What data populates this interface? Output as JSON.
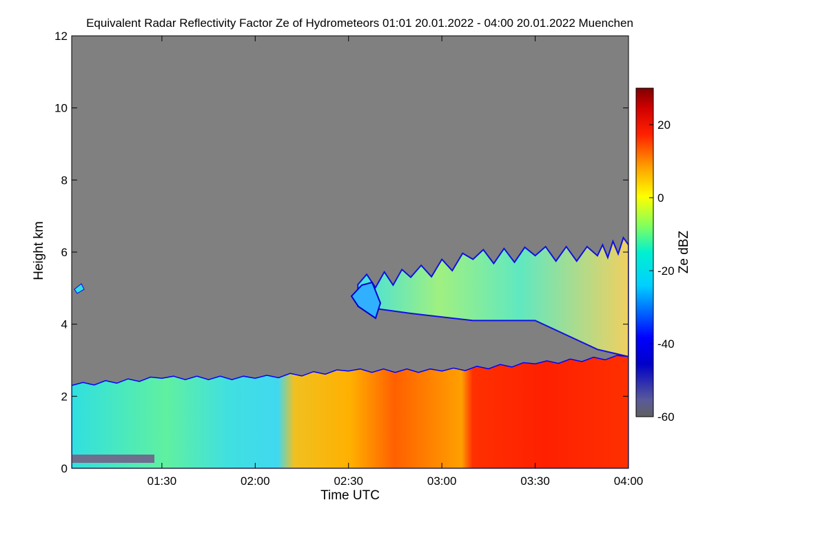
{
  "chart_data": {
    "type": "heatmap",
    "title": "Equivalent Radar Reflectivity Factor Ze of Hydrometeors   01:01 20.01.2022 - 04:00 20.01.2022 Muenchen",
    "xlabel": "Time UTC",
    "ylabel": "Height km",
    "colorbar_label": "Ze dBZ",
    "x_time_range": [
      "01:01",
      "04:00"
    ],
    "x_ticks": [
      "01:30",
      "02:00",
      "02:30",
      "03:00",
      "03:30",
      "04:00"
    ],
    "ylim": [
      0,
      12
    ],
    "y_ticks": [
      "0",
      "2",
      "4",
      "6",
      "8",
      "10",
      "12"
    ],
    "colorbar_range": [
      -60,
      30
    ],
    "colorbar_ticks": [
      "20",
      "0",
      "-20",
      "-40",
      "-60"
    ],
    "no_signal_color": "#808080",
    "colormap": [
      "#0000c8",
      "#0000ff",
      "#00c8ff",
      "#00ffff",
      "#80ff80",
      "#ffff00",
      "#ffa500",
      "#ff0000",
      "#800000"
    ],
    "features": {
      "lower_layer_top_km": [
        {
          "time": "01:01",
          "height": 2.3
        },
        {
          "time": "01:30",
          "height": 2.5
        },
        {
          "time": "02:00",
          "height": 2.5
        },
        {
          "time": "02:30",
          "height": 2.7
        },
        {
          "time": "03:00",
          "height": 2.7
        },
        {
          "time": "03:30",
          "height": 2.9
        },
        {
          "time": "04:00",
          "height": 3.1
        }
      ],
      "upper_cloud_km": [
        {
          "time": "02:33",
          "bottom": 4.5,
          "top": 5.1
        },
        {
          "time": "02:50",
          "bottom": 4.3,
          "top": 5.3
        },
        {
          "time": "03:10",
          "bottom": 4.1,
          "top": 5.8
        },
        {
          "time": "03:30",
          "bottom": 4.1,
          "top": 5.9
        },
        {
          "time": "03:50",
          "bottom": 3.3,
          "top": 5.9
        },
        {
          "time": "04:00",
          "bottom": 3.1,
          "top": 6.2
        }
      ],
      "regime_change": [
        {
          "time": "02:10",
          "description_ze_dbz": -10
        },
        {
          "time": "03:10",
          "description_ze_dbz": 15
        }
      ]
    }
  }
}
